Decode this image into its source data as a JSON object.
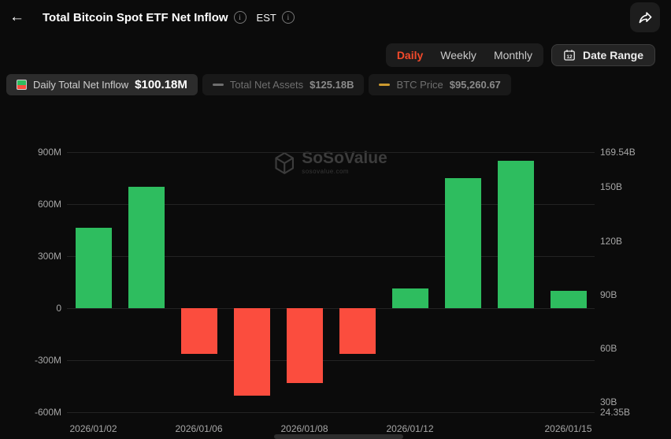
{
  "header": {
    "title": "Total Bitcoin Spot ETF Net Inflow",
    "timezone": "EST"
  },
  "controls": {
    "tabs": [
      {
        "label": "Daily",
        "active": true
      },
      {
        "label": "Weekly",
        "active": false
      },
      {
        "label": "Monthly",
        "active": false
      }
    ],
    "date_range_label": "Date Range"
  },
  "legend": [
    {
      "label": "Daily Total Net Inflow",
      "value": "$100.18M",
      "active": true,
      "icon": "bar-green-red"
    },
    {
      "label": "Total Net Assets",
      "value": "$125.18B",
      "active": false,
      "icon": "dash-grey"
    },
    {
      "label": "BTC Price",
      "value": "$95,260.67",
      "active": false,
      "icon": "dash-yellow"
    }
  ],
  "watermark": {
    "name": "SoSoValue",
    "domain": "sosovalue.com"
  },
  "colors": {
    "accent": "#f34a2b",
    "positive": "#2ebd5f",
    "negative": "#fb4d3e",
    "btc_dash": "#cc9a2f",
    "grey_dash": "#6f6f6f"
  },
  "chart_data": {
    "type": "bar",
    "title": "Total Bitcoin Spot ETF Net Inflow",
    "unit": "USD millions (left axis), USD billions (right axis)",
    "values_musd": [
      465,
      700,
      -265,
      -505,
      -430,
      -265,
      115,
      750,
      850,
      100.18
    ],
    "x_ticks": [
      {
        "slot": 0,
        "label": "2026/01/02"
      },
      {
        "slot": 2,
        "label": "2026/01/06"
      },
      {
        "slot": 4,
        "label": "2026/01/08"
      },
      {
        "slot": 6,
        "label": "2026/01/12"
      },
      {
        "slot": 9,
        "label": "2026/01/15"
      }
    ],
    "left_axis": {
      "labels": [
        "900M",
        "600M",
        "300M",
        "0",
        "-300M",
        "-600M"
      ],
      "min": -600,
      "max": 900
    },
    "right_axis": {
      "labels": [
        "169.54B",
        "150B",
        "120B",
        "90B",
        "60B",
        "30B",
        "24.35B"
      ],
      "min": 24.35,
      "max": 169.54
    },
    "grid": true,
    "legend_position": "top-left"
  }
}
